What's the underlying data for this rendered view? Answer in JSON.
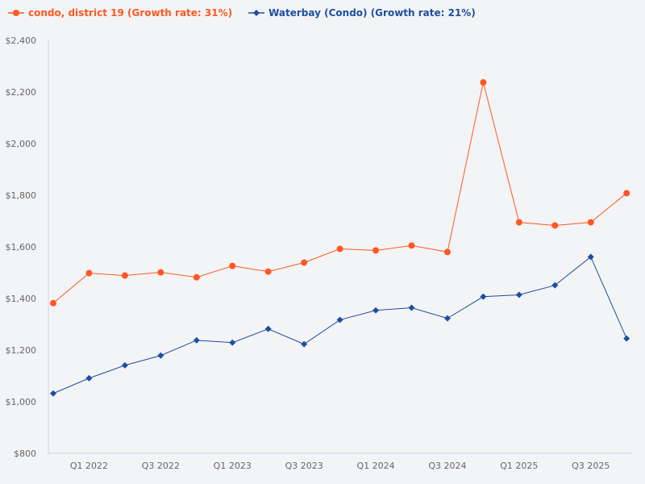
{
  "chart_data": {
    "type": "line",
    "title": "",
    "xlabel": "",
    "ylabel": "",
    "x": [
      "Q4 2021",
      "Q1 2022",
      "Q2 2022",
      "Q3 2022",
      "Q4 2022",
      "Q1 2023",
      "Q2 2023",
      "Q3 2023",
      "Q4 2023",
      "Q1 2024",
      "Q2 2024",
      "Q3 2024",
      "Q4 2024",
      "Q1 2025",
      "Q2 2025",
      "Q3 2025",
      "Q4 2025"
    ],
    "x_tick_labels": [
      "Q1 2022",
      "Q3 2022",
      "Q1 2023",
      "Q3 2023",
      "Q1 2024",
      "Q3 2024",
      "Q1 2025",
      "Q3 2025"
    ],
    "ylim": [
      800,
      2400
    ],
    "y_ticks": [
      800,
      1000,
      1200,
      1400,
      1600,
      1800,
      2000,
      2200,
      2400
    ],
    "y_tick_labels": [
      "$800",
      "$1,000",
      "$1,200",
      "$1,400",
      "$1,600",
      "$1,800",
      "$2,000",
      "$2,200",
      "$2,400"
    ],
    "grid": false,
    "legend_placement": "top-left",
    "series": [
      {
        "name": "condo, district 19 (Growth rate: 31%)",
        "color": "#ff5722",
        "marker": "circle",
        "values": [
          1382,
          1498,
          1489,
          1501,
          1482,
          1526,
          1504,
          1539,
          1592,
          1586,
          1605,
          1580,
          2237,
          1695,
          1683,
          1695,
          1808
        ]
      },
      {
        "name": "Waterbay (Condo) (Growth rate: 21%)",
        "color": "#1e4ea1",
        "marker": "diamond",
        "values": [
          1032,
          1091,
          1141,
          1179,
          1238,
          1229,
          1282,
          1223,
          1317,
          1354,
          1364,
          1323,
          1407,
          1414,
          1451,
          1561,
          1245
        ]
      }
    ]
  }
}
